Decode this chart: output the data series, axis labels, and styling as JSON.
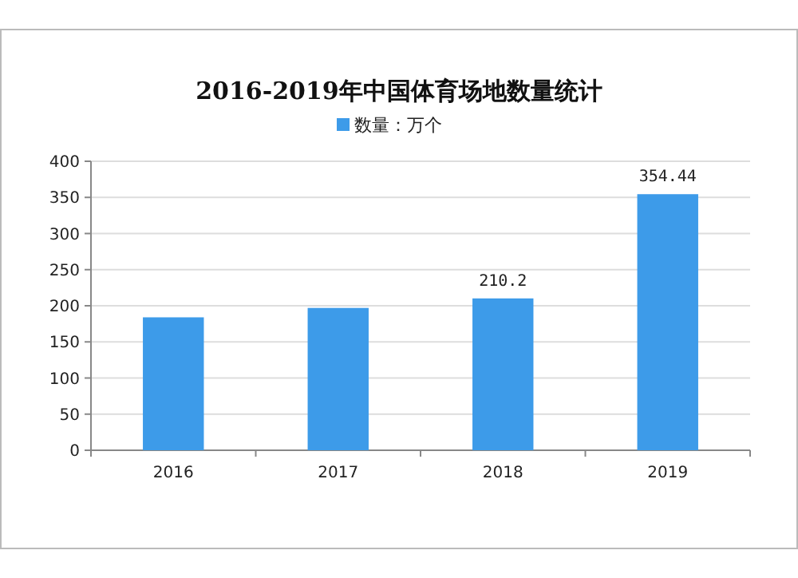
{
  "chart_data": {
    "type": "bar",
    "title": "2016-2019年中国体育场地数量统计",
    "categories": [
      "2016",
      "2017",
      "2018",
      "2019"
    ],
    "series": [
      {
        "name": "数量：万个",
        "color": "#3d9be9",
        "values": [
          184,
          197,
          210.2,
          354.44
        ],
        "value_labels": [
          null,
          null,
          "210.2",
          "354.44"
        ]
      }
    ],
    "ylim": [
      0,
      400
    ],
    "yticks": [
      0,
      50,
      100,
      150,
      200,
      250,
      300,
      350,
      400
    ],
    "grid": "y",
    "legend": "top"
  }
}
